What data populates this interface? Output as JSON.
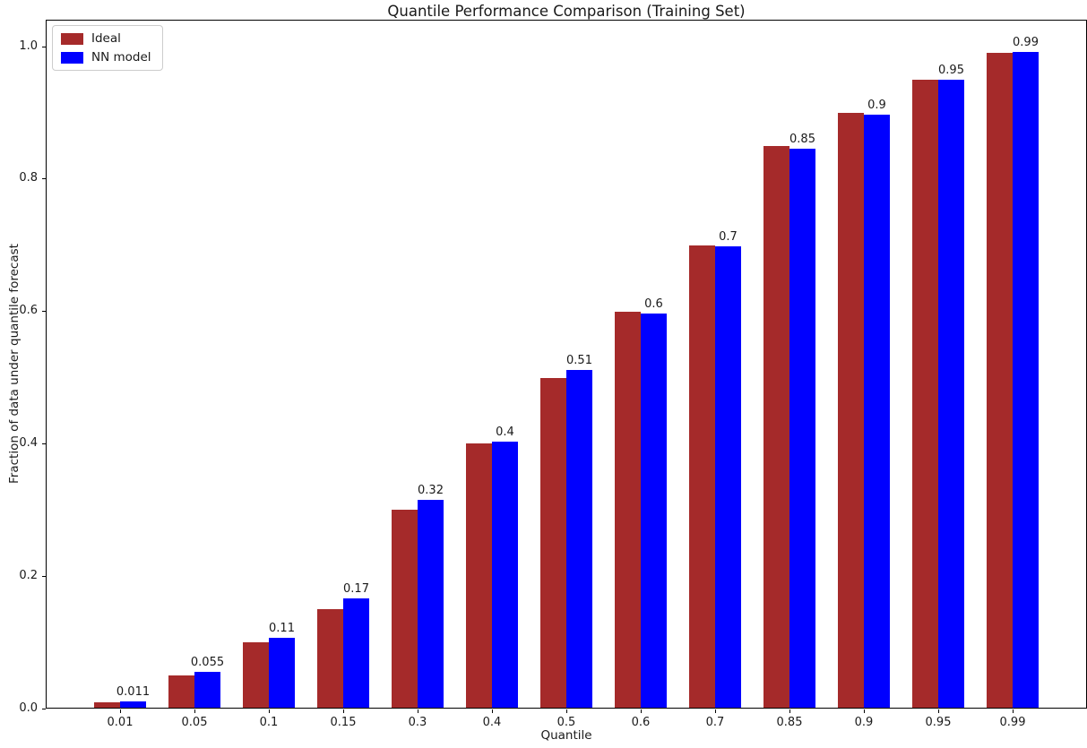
{
  "chart_data": {
    "type": "bar",
    "title": "Quantile Performance Comparison (Training Set)",
    "xlabel": "Quantile",
    "ylabel": "Fraction of data under quantile forecast",
    "categories": [
      "0.01",
      "0.05",
      "0.1",
      "0.15",
      "0.3",
      "0.4",
      "0.5",
      "0.6",
      "0.7",
      "0.85",
      "0.9",
      "0.95",
      "0.99"
    ],
    "series": [
      {
        "name": "Ideal",
        "color": "#A52A2A",
        "values": [
          0.01,
          0.05,
          0.1,
          0.15,
          0.3,
          0.4,
          0.5,
          0.6,
          0.7,
          0.85,
          0.9,
          0.95,
          0.99
        ]
      },
      {
        "name": "NN model",
        "color": "#0000FF",
        "values": [
          0.011,
          0.055,
          0.107,
          0.166,
          0.315,
          0.403,
          0.512,
          0.597,
          0.698,
          0.846,
          0.897,
          0.95,
          0.992
        ]
      }
    ],
    "bar_labels": [
      "0.011",
      "0.055",
      "0.11",
      "0.17",
      "0.32",
      "0.4",
      "0.51",
      "0.6",
      "0.7",
      "0.85",
      "0.9",
      "0.95",
      "0.99"
    ],
    "yticks": [
      "0.0",
      "0.2",
      "0.4",
      "0.6",
      "0.8",
      "1.0"
    ],
    "ylim": [
      0,
      1.0406
    ],
    "grid": false,
    "legend_position": "upper left"
  }
}
